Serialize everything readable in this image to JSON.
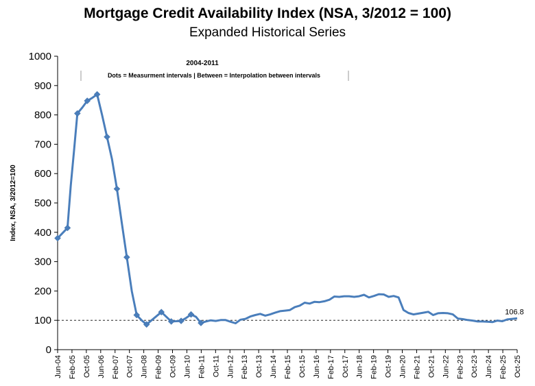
{
  "chart_data": {
    "type": "line",
    "title": "Mortgage Credit Availability Index (NSA, 3/2012 = 100)",
    "subtitle": "Expanded Historical Series",
    "xlabel": "",
    "ylabel": "Index, NSA, 3/2012=100",
    "ylim": [
      0,
      1000
    ],
    "yticks": [
      "0",
      "100",
      "200",
      "300",
      "400",
      "500",
      "600",
      "700",
      "800",
      "900",
      "1000"
    ],
    "xticks": [
      "Jun-04",
      "Feb-05",
      "Oct-05",
      "Jun-06",
      "Feb-07",
      "Oct-07",
      "Jun-08",
      "Feb-09",
      "Oct-09",
      "Jun-10",
      "Feb-11",
      "Oct-11",
      "Jun-12",
      "Feb-13",
      "Oct-13",
      "Jun-14",
      "Feb-15",
      "Oct-15",
      "Jun-16",
      "Feb-17",
      "Oct-17",
      "Jun-18",
      "Feb-19",
      "Oct-19",
      "Jun-20",
      "Feb-21",
      "Oct-21",
      "Jun-22",
      "Feb-23",
      "Oct-23",
      "Jun-24",
      "Feb-25",
      "Oct-25"
    ],
    "grid": false,
    "reference_line": 100,
    "annotation": {
      "title": "2004-2011",
      "text": "Dots = Measurment intervals  |  Between = Interpolation between intervals"
    },
    "end_label": "106.8",
    "series": [
      {
        "name": "",
        "color": "#4a7ebb",
        "points": [
          [
            "2004-06",
            380
          ],
          [
            "2004-12",
            415
          ],
          [
            "2005-02",
            560
          ],
          [
            "2005-04",
            680
          ],
          [
            "2005-06",
            805
          ],
          [
            "2005-09",
            825
          ],
          [
            "2005-12",
            848
          ],
          [
            "2006-03",
            858
          ],
          [
            "2006-06",
            870
          ],
          [
            "2006-09",
            800
          ],
          [
            "2006-12",
            725
          ],
          [
            "2007-03",
            650
          ],
          [
            "2007-06",
            548
          ],
          [
            "2007-09",
            430
          ],
          [
            "2007-12",
            315
          ],
          [
            "2008-03",
            200
          ],
          [
            "2008-06",
            118
          ],
          [
            "2008-09",
            100
          ],
          [
            "2008-12",
            86
          ],
          [
            "2009-03",
            100
          ],
          [
            "2009-06",
            114
          ],
          [
            "2009-09",
            128
          ],
          [
            "2009-12",
            112
          ],
          [
            "2010-03",
            96
          ],
          [
            "2010-06",
            97
          ],
          [
            "2010-09",
            98
          ],
          [
            "2010-12",
            108
          ],
          [
            "2011-03",
            120
          ],
          [
            "2011-06",
            112
          ],
          [
            "2011-09",
            91
          ],
          [
            "2011-12",
            96
          ],
          [
            "2012-03",
            100
          ],
          [
            "2012-06",
            98
          ],
          [
            "2012-09",
            101
          ],
          [
            "2012-12",
            101
          ],
          [
            "2013-03",
            95
          ],
          [
            "2013-06",
            90
          ],
          [
            "2013-09",
            102
          ],
          [
            "2013-12",
            105
          ],
          [
            "2014-03",
            113
          ],
          [
            "2014-06",
            118
          ],
          [
            "2014-09",
            122
          ],
          [
            "2014-12",
            116
          ],
          [
            "2015-03",
            120
          ],
          [
            "2015-06",
            126
          ],
          [
            "2015-09",
            131
          ],
          [
            "2015-12",
            133
          ],
          [
            "2016-03",
            135
          ],
          [
            "2016-06",
            145
          ],
          [
            "2016-09",
            150
          ],
          [
            "2016-12",
            160
          ],
          [
            "2017-03",
            157
          ],
          [
            "2017-06",
            163
          ],
          [
            "2017-09",
            162
          ],
          [
            "2017-12",
            165
          ],
          [
            "2018-03",
            170
          ],
          [
            "2018-06",
            181
          ],
          [
            "2018-09",
            180
          ],
          [
            "2018-12",
            182
          ],
          [
            "2019-03",
            182
          ],
          [
            "2019-06",
            180
          ],
          [
            "2019-09",
            182
          ],
          [
            "2019-12",
            187
          ],
          [
            "2020-03",
            178
          ],
          [
            "2020-06",
            183
          ],
          [
            "2020-09",
            189
          ],
          [
            "2020-12",
            188
          ],
          [
            "2021-03",
            180
          ],
          [
            "2021-06",
            183
          ],
          [
            "2021-09",
            178
          ],
          [
            "2021-12",
            135
          ],
          [
            "2022-03",
            125
          ],
          [
            "2022-06",
            120
          ],
          [
            "2022-09",
            123
          ],
          [
            "2022-12",
            126
          ],
          [
            "2023-03",
            129
          ],
          [
            "2023-06",
            118
          ],
          [
            "2023-09",
            124
          ],
          [
            "2023-12",
            125
          ],
          [
            "2024-03",
            124
          ],
          [
            "2024-06",
            120
          ],
          [
            "2024-09",
            106
          ],
          [
            "2024-12",
            104
          ],
          [
            "2025-03",
            101
          ],
          [
            "2025-06",
            99
          ],
          [
            "2025-09",
            96
          ],
          [
            "2025-12",
            96
          ],
          [
            "2026-03",
            95
          ],
          [
            "2026-06",
            94
          ],
          [
            "2026-09",
            99
          ],
          [
            "2026-12",
            97
          ],
          [
            "2027-03",
            103
          ],
          [
            "2027-06",
            105
          ],
          [
            "2027-09",
            106.8
          ]
        ],
        "markers": [
          [
            "2004-06",
            380
          ],
          [
            "2004-12",
            415
          ],
          [
            "2005-06",
            805
          ],
          [
            "2005-12",
            848
          ],
          [
            "2006-06",
            870
          ],
          [
            "2006-12",
            725
          ],
          [
            "2007-06",
            548
          ],
          [
            "2007-12",
            315
          ],
          [
            "2008-06",
            118
          ],
          [
            "2008-12",
            86
          ],
          [
            "2009-09",
            128
          ],
          [
            "2010-03",
            96
          ],
          [
            "2010-09",
            98
          ],
          [
            "2011-03",
            120
          ],
          [
            "2011-09",
            91
          ]
        ]
      }
    ]
  }
}
